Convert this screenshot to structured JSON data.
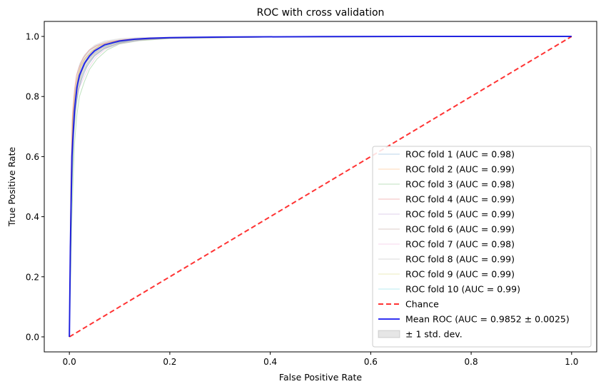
{
  "chart_data": {
    "type": "line",
    "title": "ROC with cross validation",
    "xlabel": "False Positive Rate",
    "ylabel": "True Positive Rate",
    "xlim": [
      -0.05,
      1.05
    ],
    "ylim": [
      -0.05,
      1.05
    ],
    "xticks": [
      "0.0",
      "0.2",
      "0.4",
      "0.6",
      "0.8",
      "1.0"
    ],
    "yticks": [
      "0.0",
      "0.2",
      "0.4",
      "0.6",
      "0.8",
      "1.0"
    ],
    "grid": false,
    "legend_position": "lower right",
    "series": [
      {
        "name": "ROC fold 1 (AUC = 0.98)",
        "color": "#1f77b4",
        "style": "fold",
        "x": [
          0,
          0.004,
          0.008,
          0.012,
          0.018,
          0.025,
          0.035,
          0.05,
          0.07,
          0.1,
          0.14,
          0.2,
          0.4,
          1
        ],
        "y": [
          0,
          0.42,
          0.66,
          0.75,
          0.82,
          0.86,
          0.9,
          0.935,
          0.96,
          0.978,
          0.988,
          0.994,
          0.998,
          1
        ]
      },
      {
        "name": "ROC fold 2 (AUC = 0.99)",
        "color": "#ff7f0e",
        "style": "fold",
        "x": [
          0,
          0.003,
          0.006,
          0.01,
          0.015,
          0.022,
          0.03,
          0.045,
          0.06,
          0.085,
          0.12,
          0.18,
          0.4,
          1
        ],
        "y": [
          0,
          0.5,
          0.72,
          0.8,
          0.86,
          0.9,
          0.925,
          0.95,
          0.97,
          0.982,
          0.99,
          0.995,
          0.999,
          1
        ]
      },
      {
        "name": "ROC fold 3 (AUC = 0.98)",
        "color": "#2ca02c",
        "style": "fold",
        "x": [
          0,
          0.005,
          0.01,
          0.015,
          0.02,
          0.03,
          0.04,
          0.055,
          0.075,
          0.1,
          0.14,
          0.2,
          0.4,
          1
        ],
        "y": [
          0,
          0.4,
          0.64,
          0.74,
          0.8,
          0.85,
          0.89,
          0.925,
          0.955,
          0.975,
          0.986,
          0.993,
          0.998,
          1
        ]
      },
      {
        "name": "ROC fold 4 (AUC = 0.99)",
        "color": "#d62728",
        "style": "fold",
        "x": [
          0,
          0.003,
          0.006,
          0.01,
          0.014,
          0.02,
          0.028,
          0.04,
          0.055,
          0.08,
          0.11,
          0.16,
          0.4,
          1
        ],
        "y": [
          0,
          0.52,
          0.74,
          0.82,
          0.87,
          0.9,
          0.93,
          0.955,
          0.97,
          0.983,
          0.99,
          0.995,
          0.999,
          1
        ]
      },
      {
        "name": "ROC fold 5 (AUC = 0.99)",
        "color": "#9467bd",
        "style": "fold",
        "x": [
          0,
          0.004,
          0.007,
          0.011,
          0.016,
          0.023,
          0.032,
          0.045,
          0.062,
          0.088,
          0.12,
          0.18,
          0.4,
          1
        ],
        "y": [
          0,
          0.47,
          0.7,
          0.79,
          0.85,
          0.89,
          0.92,
          0.945,
          0.965,
          0.98,
          0.989,
          0.995,
          0.999,
          1
        ]
      },
      {
        "name": "ROC fold 6 (AUC = 0.99)",
        "color": "#8c564b",
        "style": "fold",
        "x": [
          0,
          0.004,
          0.008,
          0.012,
          0.017,
          0.024,
          0.033,
          0.047,
          0.065,
          0.09,
          0.125,
          0.18,
          0.4,
          1
        ],
        "y": [
          0,
          0.45,
          0.68,
          0.78,
          0.84,
          0.88,
          0.915,
          0.94,
          0.962,
          0.978,
          0.988,
          0.994,
          0.998,
          1
        ]
      },
      {
        "name": "ROC fold 7 (AUC = 0.98)",
        "color": "#e377c2",
        "style": "fold",
        "x": [
          0,
          0.005,
          0.009,
          0.014,
          0.02,
          0.028,
          0.038,
          0.052,
          0.072,
          0.1,
          0.14,
          0.2,
          0.4,
          1
        ],
        "y": [
          0,
          0.6,
          0.76,
          0.8,
          0.83,
          0.86,
          0.895,
          0.93,
          0.958,
          0.976,
          0.987,
          0.994,
          0.998,
          1
        ]
      },
      {
        "name": "ROC fold 8 (AUC = 0.99)",
        "color": "#7f7f7f",
        "style": "fold",
        "x": [
          0,
          0.004,
          0.008,
          0.013,
          0.018,
          0.026,
          0.036,
          0.05,
          0.068,
          0.095,
          0.13,
          0.19,
          0.4,
          1
        ],
        "y": [
          0,
          0.44,
          0.67,
          0.77,
          0.83,
          0.875,
          0.91,
          0.938,
          0.96,
          0.977,
          0.988,
          0.994,
          0.998,
          1
        ]
      },
      {
        "name": "ROC fold 9 (AUC = 0.99)",
        "color": "#bcbd22",
        "style": "fold",
        "x": [
          0,
          0.003,
          0.007,
          0.011,
          0.016,
          0.022,
          0.031,
          0.044,
          0.06,
          0.085,
          0.12,
          0.17,
          0.4,
          1
        ],
        "y": [
          0,
          0.49,
          0.71,
          0.8,
          0.855,
          0.895,
          0.925,
          0.95,
          0.968,
          0.981,
          0.99,
          0.995,
          0.999,
          1
        ]
      },
      {
        "name": "ROC fold 10 (AUC = 0.99)",
        "color": "#17becf",
        "style": "fold",
        "x": [
          0,
          0.004,
          0.008,
          0.012,
          0.017,
          0.024,
          0.033,
          0.046,
          0.063,
          0.09,
          0.125,
          0.18,
          0.4,
          1
        ],
        "y": [
          0,
          0.46,
          0.69,
          0.785,
          0.845,
          0.885,
          0.918,
          0.943,
          0.964,
          0.979,
          0.989,
          0.995,
          0.999,
          1
        ]
      },
      {
        "name": "Chance",
        "color": "#ff0000",
        "style": "chance",
        "x": [
          0,
          1
        ],
        "y": [
          0,
          1
        ]
      },
      {
        "name": "Mean ROC (AUC = 0.9852 ± 0.0025)",
        "color": "#0000ee",
        "style": "mean",
        "x": [
          0,
          0.002,
          0.005,
          0.01,
          0.015,
          0.02,
          0.03,
          0.04,
          0.05,
          0.07,
          0.1,
          0.13,
          0.16,
          0.2,
          0.3,
          0.5,
          0.7,
          1
        ],
        "y": [
          0,
          0.3,
          0.6,
          0.75,
          0.83,
          0.87,
          0.91,
          0.935,
          0.952,
          0.972,
          0.985,
          0.991,
          0.994,
          0.996,
          0.998,
          0.9995,
          1,
          1
        ]
      }
    ],
    "band": {
      "name": "± 1 std. dev.",
      "color": "#808080",
      "x": [
        0,
        0.002,
        0.005,
        0.01,
        0.015,
        0.02,
        0.03,
        0.04,
        0.05,
        0.07,
        0.1,
        0.13,
        0.16,
        0.2,
        0.3,
        0.5,
        0.7,
        1
      ],
      "lower": [
        0,
        0.2,
        0.48,
        0.68,
        0.78,
        0.83,
        0.88,
        0.91,
        0.932,
        0.958,
        0.976,
        0.986,
        0.99,
        0.993,
        0.997,
        0.999,
        1,
        1
      ],
      "upper": [
        0,
        0.42,
        0.72,
        0.82,
        0.88,
        0.91,
        0.94,
        0.958,
        0.972,
        0.986,
        0.994,
        0.997,
        0.998,
        0.999,
        1,
        1,
        1,
        1
      ]
    }
  }
}
